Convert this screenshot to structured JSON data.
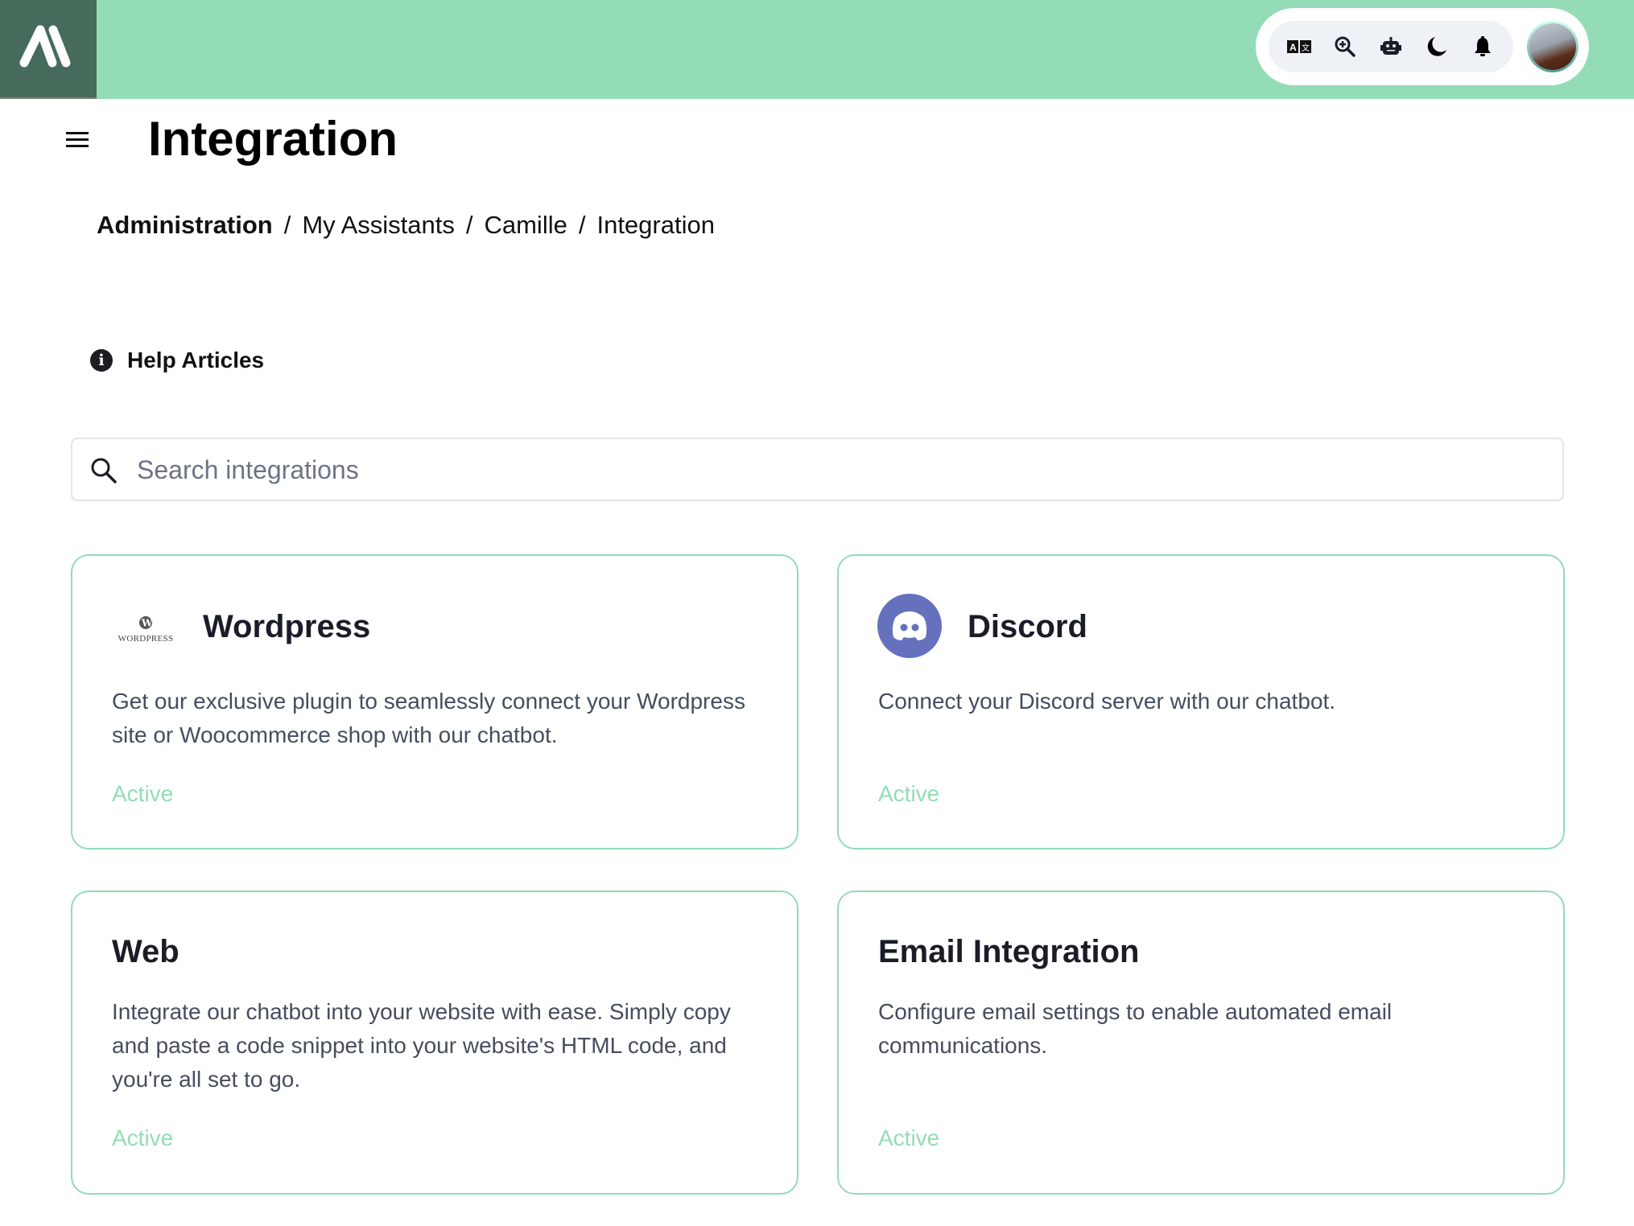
{
  "header": {
    "colors": {
      "bar": "#93dcb7",
      "logo_bg": "#476b5a"
    },
    "icons": [
      "translate-icon",
      "zoom-in-icon",
      "robot-icon",
      "moon-icon",
      "bell-icon"
    ]
  },
  "page": {
    "title": "Integration"
  },
  "breadcrumb": [
    "Administration",
    "My Assistants",
    "Camille",
    "Integration"
  ],
  "help": {
    "label": "Help Articles"
  },
  "search": {
    "placeholder": "Search integrations",
    "value": ""
  },
  "cards": [
    {
      "title": "Wordpress",
      "logo_text": "WordPress",
      "description": "Get our exclusive plugin to seamlessly connect your Wordpress site or Woocommerce shop with our chatbot.",
      "status": "Active"
    },
    {
      "title": "Discord",
      "description": "Connect your Discord server with our chatbot.",
      "status": "Active"
    },
    {
      "title": "Web",
      "description": "Integrate our chatbot into your website with ease. Simply copy and paste a code snippet into your website's HTML code, and you're all set to go.",
      "status": "Active"
    },
    {
      "title": "Email Integration",
      "description": "Configure email settings to enable automated email communications.",
      "status": "Active"
    }
  ]
}
